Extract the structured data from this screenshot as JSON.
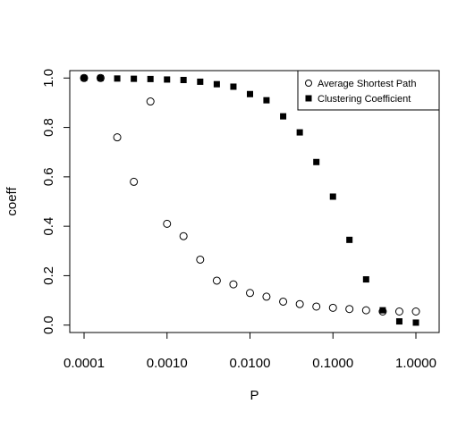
{
  "chart_data": {
    "type": "scatter",
    "xlabel": "P",
    "ylabel": "coeff",
    "x_scale": "log",
    "xlim": [
      0.0001,
      1.0
    ],
    "ylim": [
      -0.03,
      1.03
    ],
    "x_ticks": [
      0.0001,
      0.001,
      0.01,
      0.1,
      1.0
    ],
    "x_tick_labels": [
      "0.0001",
      "0.0010",
      "0.0100",
      "0.1000",
      "1.0000"
    ],
    "y_ticks": [
      0.0,
      0.2,
      0.4,
      0.6,
      0.8,
      1.0
    ],
    "y_tick_labels": [
      "0.0",
      "0.2",
      "0.4",
      "0.6",
      "0.8",
      "1.0"
    ],
    "grid": false,
    "legend_position": "top-right",
    "series": [
      {
        "name": "Average Shortest Path",
        "marker": "open-circle",
        "color": "#000000",
        "x": [
          0.0001,
          0.000158,
          0.000251,
          0.000398,
          0.000631,
          0.001,
          0.00158,
          0.00251,
          0.00398,
          0.00631,
          0.01,
          0.0158,
          0.0251,
          0.0398,
          0.0631,
          0.1,
          0.158,
          0.251,
          0.398,
          0.631,
          1.0
        ],
        "y": [
          1.0,
          1.0,
          0.76,
          0.58,
          0.905,
          0.41,
          0.36,
          0.265,
          0.18,
          0.165,
          0.13,
          0.115,
          0.095,
          0.085,
          0.075,
          0.07,
          0.065,
          0.06,
          0.055,
          0.055,
          0.055
        ]
      },
      {
        "name": "Clustering Coefficient",
        "marker": "filled-square",
        "color": "#000000",
        "x": [
          0.0001,
          0.000158,
          0.000251,
          0.000398,
          0.000631,
          0.001,
          0.00158,
          0.00251,
          0.00398,
          0.00631,
          0.01,
          0.0158,
          0.0251,
          0.0398,
          0.0631,
          0.1,
          0.158,
          0.251,
          0.398,
          0.631,
          1.0
        ],
        "y": [
          1.0,
          1.0,
          0.998,
          0.997,
          0.996,
          0.994,
          0.992,
          0.985,
          0.975,
          0.965,
          0.935,
          0.91,
          0.845,
          0.78,
          0.66,
          0.52,
          0.345,
          0.185,
          0.06,
          0.015,
          0.01
        ]
      }
    ]
  }
}
